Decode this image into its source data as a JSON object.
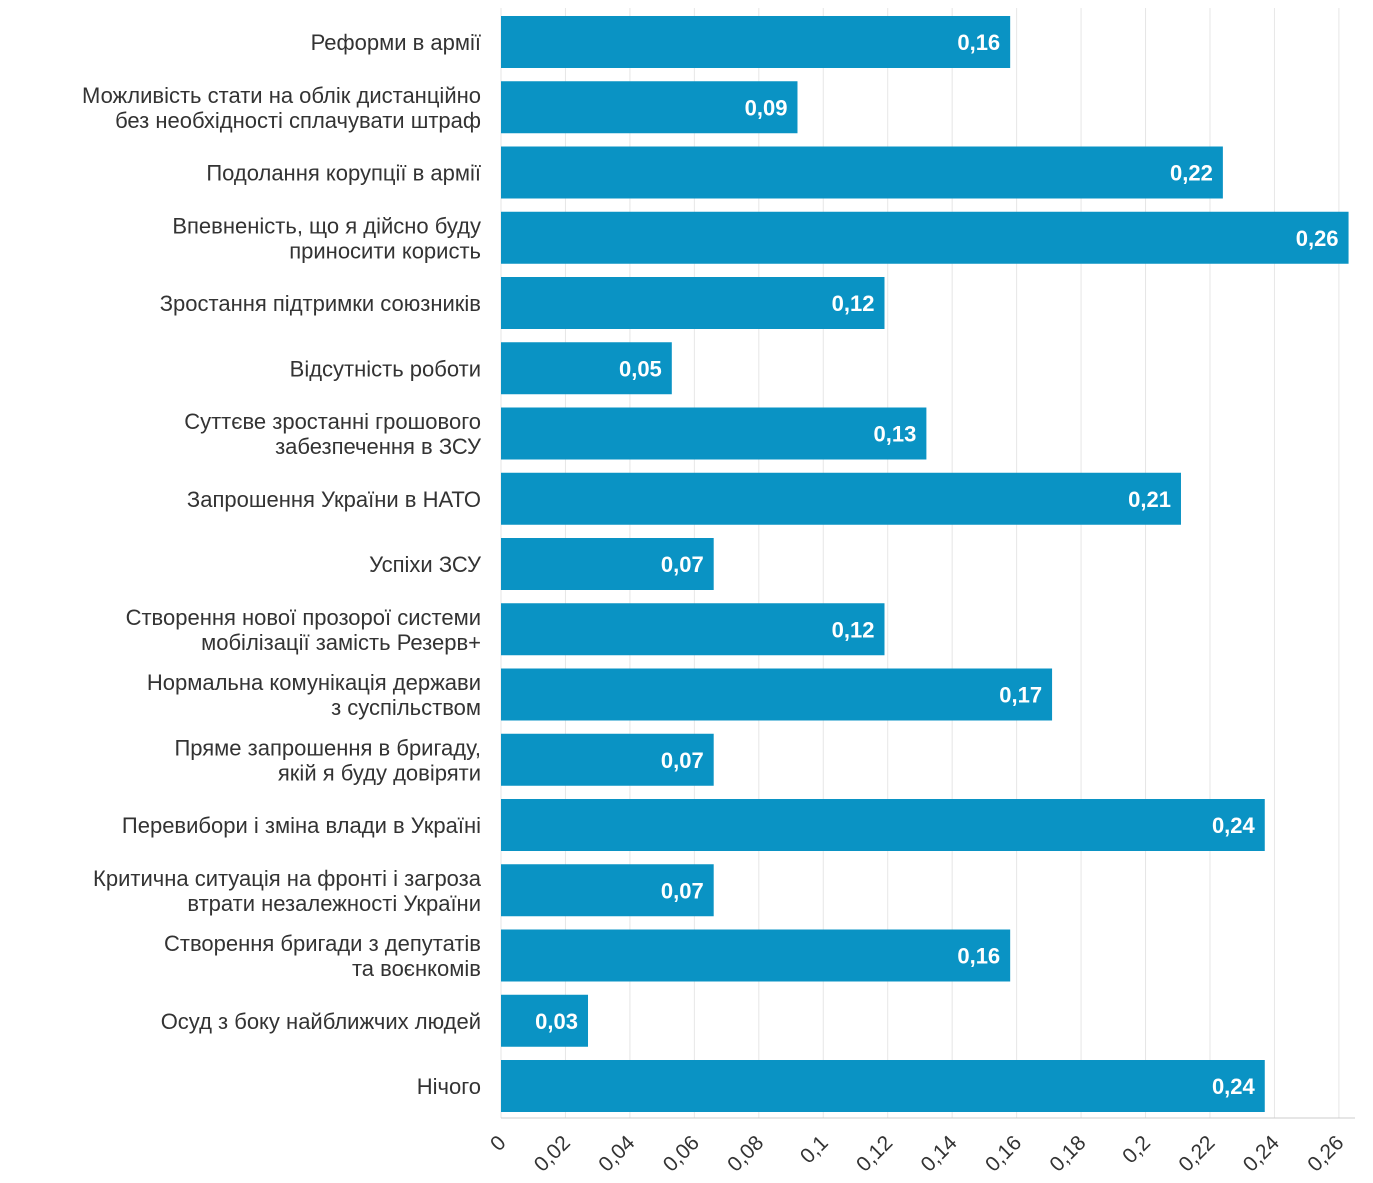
{
  "chart_data": {
    "type": "bar",
    "orientation": "horizontal",
    "categories": [
      [
        "Реформи в армії"
      ],
      [
        "Можливість стати на облік дистанційно",
        "без необхідності сплачувати штраф"
      ],
      [
        "Подолання корупції в армії"
      ],
      [
        "Впевненість, що я дійсно буду",
        "приносити користь"
      ],
      [
        "Зростання підтримки союзників"
      ],
      [
        "Відсутність роботи"
      ],
      [
        "Суттєве зростанні грошового",
        "забезпечення в ЗСУ"
      ],
      [
        "Запрошення України в НАТО"
      ],
      [
        "Успіхи ЗСУ"
      ],
      [
        "Створення нової прозорої системи",
        "мобілізації замість Резерв+"
      ],
      [
        "Нормальна комунікація держави",
        "з суспільством"
      ],
      [
        "Пряме запрошення в бригаду,",
        "якій я буду довіряти"
      ],
      [
        "Перевибори і зміна влади в Україні"
      ],
      [
        "Критична ситуація на фронті і загроза",
        "втрати незалежності України"
      ],
      [
        "Створення бригади з депутатів",
        "та воєнкомів"
      ],
      [
        "Осуд з боку найближчих людей"
      ],
      [
        "Нічого"
      ]
    ],
    "values": [
      0.158,
      0.092,
      0.224,
      0.263,
      0.119,
      0.053,
      0.132,
      0.211,
      0.066,
      0.119,
      0.171,
      0.066,
      0.237,
      0.066,
      0.158,
      0.027,
      0.237
    ],
    "value_labels": [
      "0,16",
      "0,09",
      "0,22",
      "0,26",
      "0,12",
      "0,05",
      "0,13",
      "0,21",
      "0,07",
      "0,12",
      "0,17",
      "0,07",
      "0,24",
      "0,07",
      "0,16",
      "0,03",
      "0,24"
    ],
    "x_ticks": [
      0,
      0.02,
      0.04,
      0.06,
      0.08,
      0.1,
      0.12,
      0.14,
      0.16,
      0.18,
      0.2,
      0.22,
      0.24,
      0.26
    ],
    "x_tick_labels": [
      "0",
      "0,02",
      "0,04",
      "0,06",
      "0,08",
      "0,1",
      "0,12",
      "0,14",
      "0,16",
      "0,18",
      "0,2",
      "0,22",
      "0,24",
      "0,26"
    ],
    "xlim": [
      0,
      0.265
    ],
    "title": "",
    "xlabel": "",
    "ylabel": "",
    "grid": "vertical",
    "legend": "none",
    "bar_color": "#0a93c4",
    "grid_color": "#e6e6e6"
  }
}
